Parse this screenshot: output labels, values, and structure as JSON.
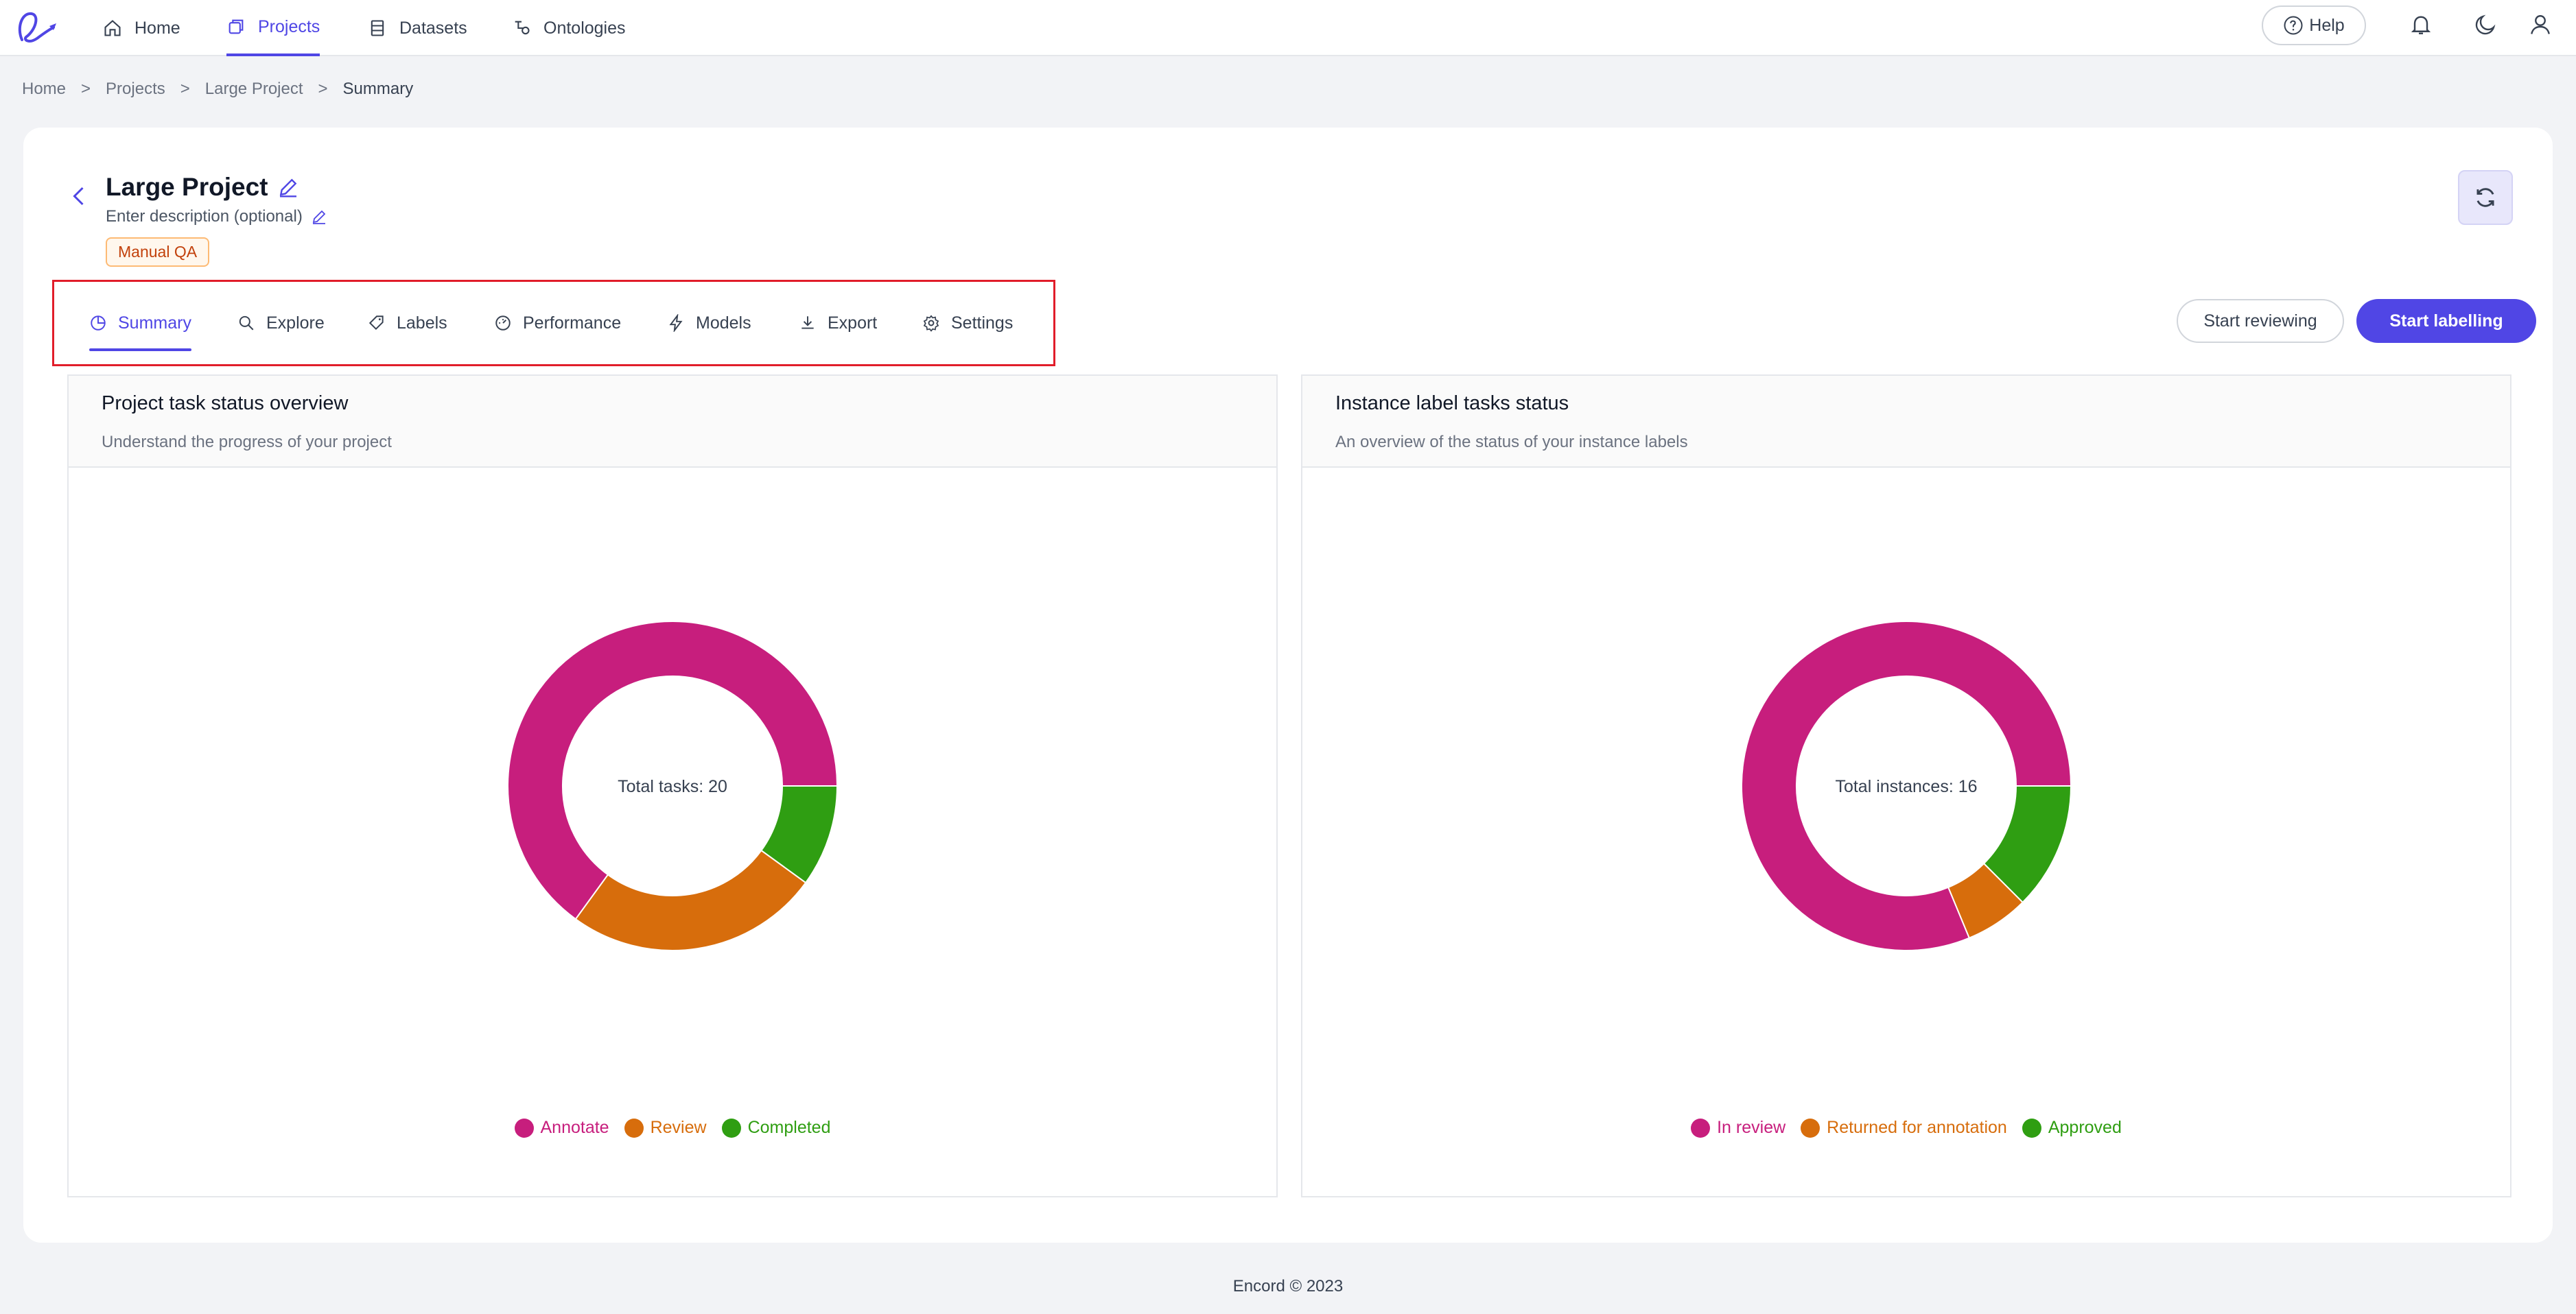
{
  "topnav": {
    "items": [
      {
        "label": "Home",
        "icon": "home-icon"
      },
      {
        "label": "Projects",
        "icon": "projects-icon"
      },
      {
        "label": "Datasets",
        "icon": "datasets-icon"
      },
      {
        "label": "Ontologies",
        "icon": "ontologies-icon"
      }
    ],
    "active": "Projects",
    "help_label": "Help"
  },
  "breadcrumb": {
    "items": [
      "Home",
      "Projects",
      "Large Project",
      "Summary"
    ],
    "separator": ">"
  },
  "project": {
    "title": "Large Project",
    "description_placeholder": "Enter description (optional)",
    "badge": "Manual QA"
  },
  "tabs": {
    "items": [
      {
        "label": "Summary",
        "icon": "pie-chart-icon"
      },
      {
        "label": "Explore",
        "icon": "search-icon"
      },
      {
        "label": "Labels",
        "icon": "tag-icon"
      },
      {
        "label": "Performance",
        "icon": "dashboard-icon"
      },
      {
        "label": "Models",
        "icon": "lightning-icon"
      },
      {
        "label": "Export",
        "icon": "download-icon"
      },
      {
        "label": "Settings",
        "icon": "gear-icon"
      }
    ],
    "active": "Summary"
  },
  "actions": {
    "start_reviewing": "Start reviewing",
    "start_labelling": "Start labelling"
  },
  "colors": {
    "accent": "#4f46e5",
    "magenta": "#c71e7d",
    "orange": "#d76d0c",
    "green": "#2f9e12",
    "highlight": "#e11d2a"
  },
  "chart_data": [
    {
      "type": "pie",
      "title": "Project task status overview",
      "subtitle": "Understand the progress of your project",
      "center_label": "Total tasks: 20",
      "categories": [
        "Annotate",
        "Review",
        "Completed"
      ],
      "values": [
        13,
        5,
        2
      ],
      "colors": [
        "#c71e7d",
        "#d76d0c",
        "#2f9e12"
      ],
      "legend": "bottom"
    },
    {
      "type": "pie",
      "title": "Instance label tasks status",
      "subtitle": "An overview of the status of your instance labels",
      "center_label": "Total instances: 16",
      "categories": [
        "In review",
        "Returned for annotation",
        "Approved"
      ],
      "values": [
        13,
        1,
        2
      ],
      "colors": [
        "#c71e7d",
        "#d76d0c",
        "#2f9e12"
      ],
      "legend": "bottom"
    }
  ],
  "footer": "Encord © 2023"
}
